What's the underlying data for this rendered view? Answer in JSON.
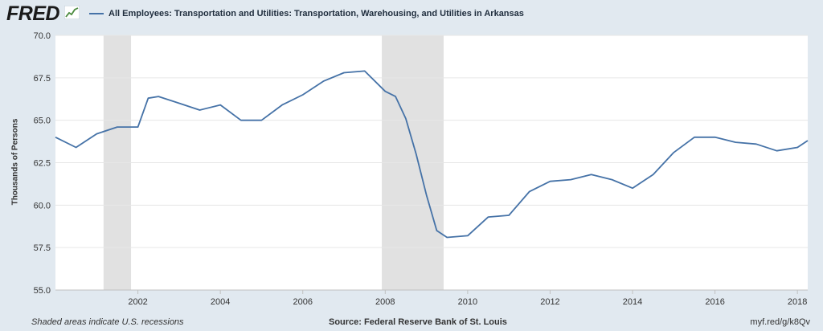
{
  "header": {
    "logo_text": "FRED",
    "logo_icon": "fred-chart-icon",
    "series_title": "All Employees: Transportation and Utilities: Transportation, Warehousing, and Utilities in Arkansas"
  },
  "colors": {
    "background": "#e1e9f0",
    "plot_background": "#ffffff",
    "line": "#4572a7",
    "recession": "#e1e1e1",
    "grid": "#e6e6e6"
  },
  "footer": {
    "recession_note": "Shaded areas indicate U.S. recessions",
    "source": "Source: Federal Reserve Bank of St. Louis",
    "short_url": "myf.red/g/k8Qv"
  },
  "chart_data": {
    "type": "line",
    "title": "All Employees: Transportation and Utilities: Transportation, Warehousing, and Utilities in Arkansas",
    "ylabel": "Thousands of Persons",
    "xlabel": "",
    "ylim": [
      55.0,
      70.0
    ],
    "xlim": [
      "2000-01",
      "2018-04"
    ],
    "y_ticks": [
      "55.0",
      "57.5",
      "60.0",
      "62.5",
      "65.0",
      "67.5",
      "70.0"
    ],
    "x_ticks": [
      "2002",
      "2004",
      "2006",
      "2008",
      "2010",
      "2012",
      "2014",
      "2016",
      "2018"
    ],
    "grid": true,
    "legend_position": "top-left",
    "recessions": [
      [
        "2001-03",
        "2001-11"
      ],
      [
        "2007-12",
        "2009-06"
      ]
    ],
    "series": [
      {
        "name": "All Employees: Transportation and Utilities: Transportation, Warehousing, and Utilities in Arkansas",
        "x": [
          "2000-01",
          "2000-07",
          "2001-01",
          "2001-07",
          "2002-01",
          "2002-04",
          "2002-07",
          "2003-01",
          "2003-07",
          "2004-01",
          "2004-07",
          "2005-01",
          "2005-07",
          "2006-01",
          "2006-07",
          "2007-01",
          "2007-07",
          "2008-01",
          "2008-04",
          "2008-07",
          "2008-10",
          "2009-01",
          "2009-04",
          "2009-07",
          "2010-01",
          "2010-07",
          "2011-01",
          "2011-07",
          "2012-01",
          "2012-07",
          "2013-01",
          "2013-07",
          "2014-01",
          "2014-07",
          "2015-01",
          "2015-07",
          "2016-01",
          "2016-07",
          "2017-01",
          "2017-07",
          "2018-01",
          "2018-04"
        ],
        "values": [
          64.0,
          63.4,
          64.2,
          64.6,
          64.6,
          66.3,
          66.4,
          66.0,
          65.6,
          65.9,
          65.0,
          65.0,
          65.9,
          66.5,
          67.3,
          67.8,
          67.9,
          66.7,
          66.4,
          65.1,
          63.0,
          60.6,
          58.5,
          58.1,
          58.2,
          59.3,
          59.4,
          60.8,
          61.4,
          61.5,
          61.8,
          61.5,
          61.0,
          61.8,
          63.1,
          64.0,
          64.0,
          63.7,
          63.6,
          63.2,
          63.4,
          63.8
        ]
      }
    ]
  }
}
